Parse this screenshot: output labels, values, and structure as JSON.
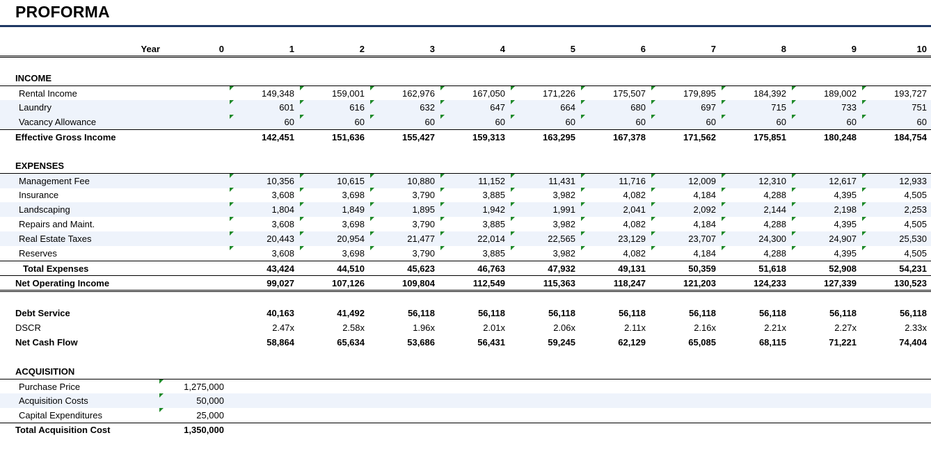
{
  "title": "PROFORMA",
  "year_label": "Year",
  "years": [
    "0",
    "1",
    "2",
    "3",
    "4",
    "5",
    "6",
    "7",
    "8",
    "9",
    "10"
  ],
  "income": {
    "header": "INCOME",
    "rows": [
      {
        "label": "Rental Income",
        "values": [
          "149,348",
          "159,001",
          "162,976",
          "167,050",
          "171,226",
          "175,507",
          "179,895",
          "184,392",
          "189,002",
          "193,727"
        ]
      },
      {
        "label": "Laundry",
        "values": [
          "601",
          "616",
          "632",
          "647",
          "664",
          "680",
          "697",
          "715",
          "733",
          "751"
        ]
      },
      {
        "label": "Vacancy Allowance",
        "values": [
          "60",
          "60",
          "60",
          "60",
          "60",
          "60",
          "60",
          "60",
          "60",
          "60"
        ]
      }
    ],
    "total": {
      "label": "Effective Gross Income",
      "values": [
        "142,451",
        "151,636",
        "155,427",
        "159,313",
        "163,295",
        "167,378",
        "171,562",
        "175,851",
        "180,248",
        "184,754"
      ]
    }
  },
  "expenses": {
    "header": "EXPENSES",
    "rows": [
      {
        "label": "Management Fee",
        "values": [
          "10,356",
          "10,615",
          "10,880",
          "11,152",
          "11,431",
          "11,716",
          "12,009",
          "12,310",
          "12,617",
          "12,933"
        ]
      },
      {
        "label": "Insurance",
        "values": [
          "3,608",
          "3,698",
          "3,790",
          "3,885",
          "3,982",
          "4,082",
          "4,184",
          "4,288",
          "4,395",
          "4,505"
        ]
      },
      {
        "label": "Landscaping",
        "values": [
          "1,804",
          "1,849",
          "1,895",
          "1,942",
          "1,991",
          "2,041",
          "2,092",
          "2,144",
          "2,198",
          "2,253"
        ]
      },
      {
        "label": "Repairs and Maint.",
        "values": [
          "3,608",
          "3,698",
          "3,790",
          "3,885",
          "3,982",
          "4,082",
          "4,184",
          "4,288",
          "4,395",
          "4,505"
        ]
      },
      {
        "label": "Real Estate Taxes",
        "values": [
          "20,443",
          "20,954",
          "21,477",
          "22,014",
          "22,565",
          "23,129",
          "23,707",
          "24,300",
          "24,907",
          "25,530"
        ]
      },
      {
        "label": "Reserves",
        "values": [
          "3,608",
          "3,698",
          "3,790",
          "3,885",
          "3,982",
          "4,082",
          "4,184",
          "4,288",
          "4,395",
          "4,505"
        ]
      }
    ],
    "total": {
      "label": "Total Expenses",
      "values": [
        "43,424",
        "44,510",
        "45,623",
        "46,763",
        "47,932",
        "49,131",
        "50,359",
        "51,618",
        "52,908",
        "54,231"
      ]
    },
    "noi": {
      "label": "Net Operating Income",
      "values": [
        "99,027",
        "107,126",
        "109,804",
        "112,549",
        "115,363",
        "118,247",
        "121,203",
        "124,233",
        "127,339",
        "130,523"
      ]
    }
  },
  "debt": {
    "service": {
      "label": "Debt Service",
      "values": [
        "40,163",
        "41,492",
        "56,118",
        "56,118",
        "56,118",
        "56,118",
        "56,118",
        "56,118",
        "56,118",
        "56,118"
      ]
    },
    "dscr": {
      "label": "DSCR",
      "values": [
        "2.47x",
        "2.58x",
        "1.96x",
        "2.01x",
        "2.06x",
        "2.11x",
        "2.16x",
        "2.21x",
        "2.27x",
        "2.33x"
      ]
    },
    "cash_flow": {
      "label": "Net Cash Flow",
      "values": [
        "58,864",
        "65,634",
        "53,686",
        "56,431",
        "59,245",
        "62,129",
        "65,085",
        "68,115",
        "71,221",
        "74,404"
      ]
    }
  },
  "acquisition": {
    "header": "ACQUISITION",
    "rows": [
      {
        "label": "Purchase Price",
        "value": "1,275,000"
      },
      {
        "label": "Acquisition Costs",
        "value": "50,000"
      },
      {
        "label": "Capital Expenditures",
        "value": "25,000"
      }
    ],
    "total": {
      "label": "Total Acquisition Cost",
      "value": "1,350,000"
    }
  }
}
